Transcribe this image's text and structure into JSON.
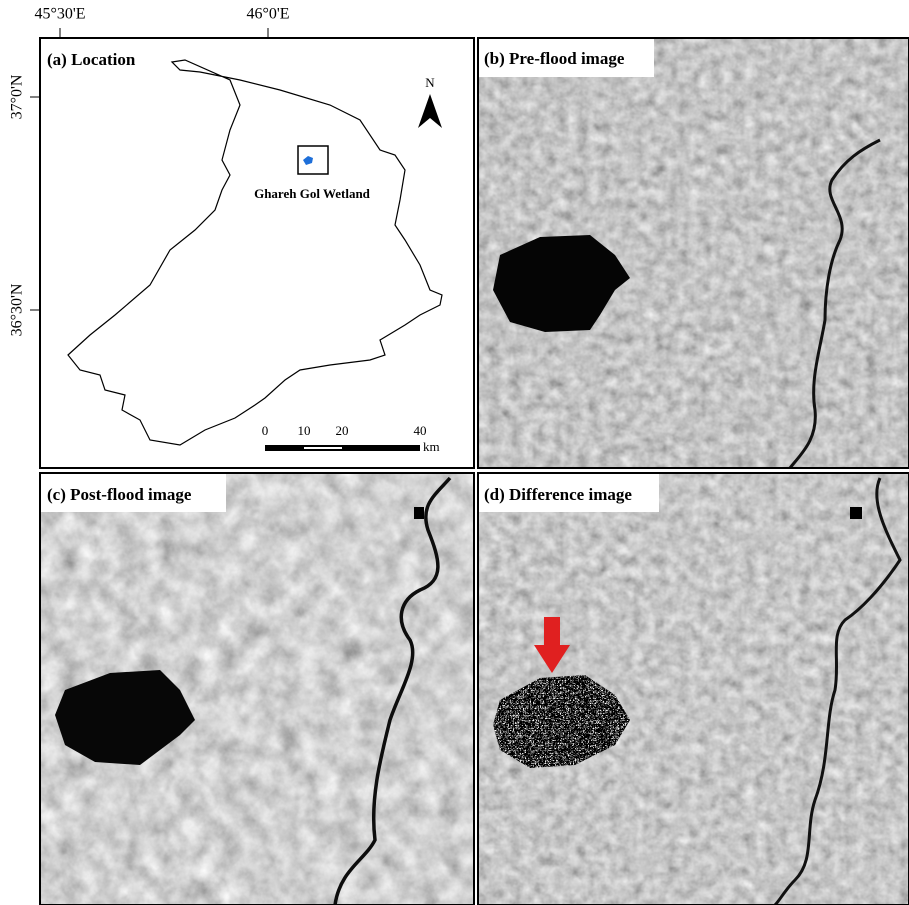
{
  "coordinates": {
    "longitude": [
      "45°30'E",
      "46°0'E"
    ],
    "latitude": [
      "37°0'N",
      "36°30'N"
    ]
  },
  "panels": [
    {
      "label": "(a) Location"
    },
    {
      "label": "(b) Pre-flood image"
    },
    {
      "label": "(c) Post-flood image"
    },
    {
      "label": "(d) Difference image"
    }
  ],
  "map": {
    "north": "N",
    "wetland": "Ghareh Gol Wetland",
    "scale": {
      "ticks": [
        "0",
        "10",
        "20",
        "40"
      ],
      "unit": "km"
    }
  }
}
